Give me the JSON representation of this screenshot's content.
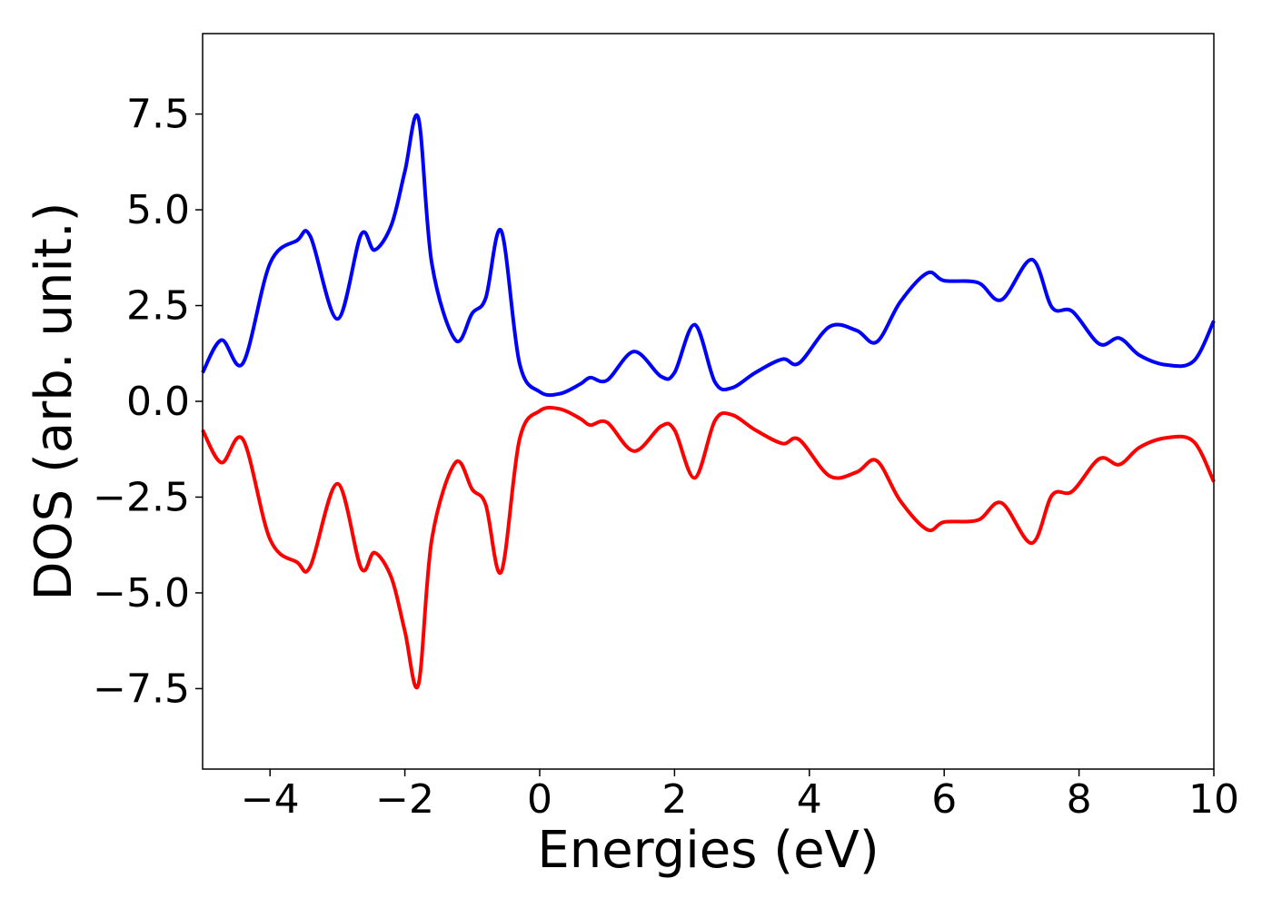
{
  "chart_data": {
    "type": "line",
    "title": "",
    "xlabel": "Energies (eV)",
    "ylabel": "DOS (arb. unit.)",
    "xlim": [
      -5,
      10
    ],
    "ylim": [
      -9.6,
      9.6
    ],
    "grid": false,
    "legend": "none",
    "x_ticks": [
      -4,
      -2,
      0,
      2,
      4,
      6,
      8,
      10
    ],
    "x_tick_labels": [
      "−4",
      "−2",
      "0",
      "2",
      "4",
      "6",
      "8",
      "10"
    ],
    "y_ticks": [
      7.5,
      5.0,
      2.5,
      0.0,
      -2.5,
      -5.0,
      -7.5
    ],
    "y_tick_labels": [
      "7.5",
      "5.0",
      "2.5",
      "0.0",
      "−2.5",
      "−5.0",
      "−7.5"
    ],
    "x": [
      -5.0,
      -4.72,
      -4.4,
      -4.0,
      -3.6,
      -3.4,
      -3.0,
      -2.65,
      -2.45,
      -2.2,
      -2.0,
      -1.8,
      -1.6,
      -1.25,
      -1.0,
      -0.8,
      -0.57,
      -0.3,
      0.0,
      0.3,
      0.6,
      0.75,
      1.0,
      1.4,
      1.8,
      2.0,
      2.3,
      2.6,
      2.85,
      3.2,
      3.6,
      3.85,
      4.3,
      4.7,
      5.0,
      5.35,
      5.75,
      6.0,
      6.5,
      6.85,
      7.3,
      7.6,
      7.9,
      8.3,
      8.6,
      8.9,
      9.3,
      9.7,
      10.0
    ],
    "series": [
      {
        "color": "#0000ff",
        "values": [
          0.75,
          1.6,
          1.0,
          3.6,
          4.2,
          4.3,
          2.15,
          4.35,
          3.95,
          4.6,
          6.0,
          7.4,
          3.6,
          1.6,
          2.3,
          2.7,
          4.45,
          1.0,
          0.25,
          0.2,
          0.45,
          0.62,
          0.55,
          1.3,
          0.65,
          0.75,
          2.0,
          0.5,
          0.35,
          0.75,
          1.1,
          1.0,
          1.95,
          1.85,
          1.55,
          2.6,
          3.35,
          3.15,
          3.1,
          2.65,
          3.7,
          2.45,
          2.35,
          1.5,
          1.65,
          1.2,
          0.95,
          1.05,
          2.1
        ]
      },
      {
        "color": "#ff0000",
        "values": [
          -0.75,
          -1.6,
          -1.0,
          -3.6,
          -4.2,
          -4.3,
          -2.15,
          -4.35,
          -3.95,
          -4.6,
          -6.0,
          -7.4,
          -3.6,
          -1.6,
          -2.3,
          -2.7,
          -4.45,
          -1.0,
          -0.25,
          -0.2,
          -0.45,
          -0.62,
          -0.55,
          -1.3,
          -0.65,
          -0.75,
          -2.0,
          -0.5,
          -0.35,
          -0.75,
          -1.1,
          -1.0,
          -1.95,
          -1.85,
          -1.55,
          -2.6,
          -3.35,
          -3.15,
          -3.1,
          -2.65,
          -3.7,
          -2.45,
          -2.35,
          -1.5,
          -1.65,
          -1.2,
          -0.95,
          -1.05,
          -2.1
        ]
      }
    ]
  }
}
